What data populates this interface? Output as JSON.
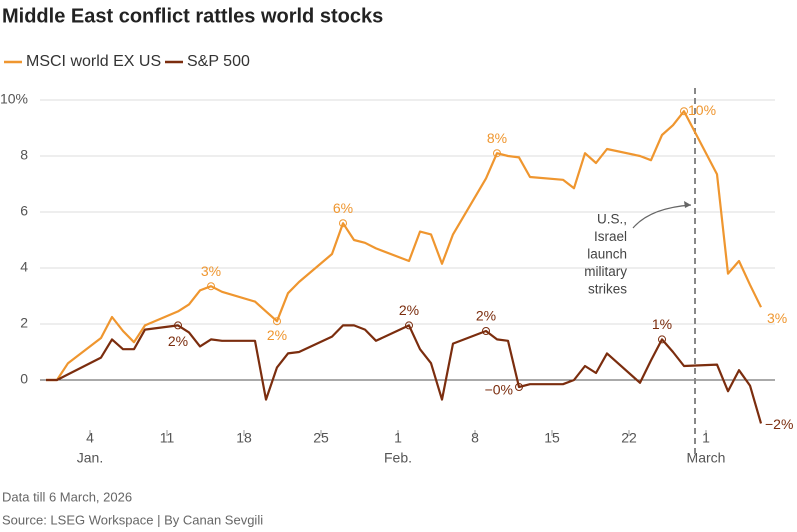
{
  "chart_data": {
    "type": "line",
    "title": "Middle East conflict rattles world stocks",
    "x": [
      "2025-12-31",
      "2026-01-01",
      "2026-01-02",
      "2026-01-05",
      "2026-01-06",
      "2026-01-07",
      "2026-01-08",
      "2026-01-09",
      "2026-01-12",
      "2026-01-13",
      "2026-01-14",
      "2026-01-15",
      "2026-01-16",
      "2026-01-19",
      "2026-01-20",
      "2026-01-21",
      "2026-01-22",
      "2026-01-23",
      "2026-01-26",
      "2026-01-27",
      "2026-01-28",
      "2026-01-29",
      "2026-01-30",
      "2026-02-02",
      "2026-02-03",
      "2026-02-04",
      "2026-02-05",
      "2026-02-06",
      "2026-02-09",
      "2026-02-10",
      "2026-02-11",
      "2026-02-12",
      "2026-02-13",
      "2026-02-16",
      "2026-02-17",
      "2026-02-18",
      "2026-02-19",
      "2026-02-20",
      "2026-02-23",
      "2026-02-24",
      "2026-02-25",
      "2026-02-26",
      "2026-02-27",
      "2026-03-02",
      "2026-03-03",
      "2026-03-04",
      "2026-03-05",
      "2026-03-06"
    ],
    "series": [
      {
        "name": "MSCI world EX US",
        "color": "#ef962f",
        "values": [
          0,
          0,
          0.6,
          1.5,
          2.25,
          1.75,
          1.35,
          1.95,
          2.45,
          2.7,
          3.2,
          3.35,
          3.15,
          2.8,
          2.45,
          2.1,
          3.1,
          3.5,
          4.5,
          5.6,
          5.0,
          4.9,
          4.7,
          4.25,
          5.3,
          5.2,
          4.15,
          5.2,
          7.2,
          8.1,
          8.0,
          7.95,
          7.25,
          7.15,
          6.85,
          8.1,
          7.75,
          8.25,
          8.0,
          7.85,
          8.75,
          9.1,
          9.6,
          7.35,
          3.8,
          4.25,
          3.4,
          2.6
        ],
        "value_labels": [
          null,
          null,
          null,
          null,
          null,
          null,
          null,
          null,
          null,
          null,
          null,
          "3%",
          null,
          null,
          null,
          "2%",
          null,
          null,
          null,
          "6%",
          null,
          null,
          null,
          null,
          null,
          null,
          null,
          null,
          null,
          "8%",
          null,
          null,
          null,
          null,
          null,
          null,
          null,
          null,
          null,
          null,
          null,
          null,
          "10%",
          null,
          null,
          null,
          null,
          "3%"
        ]
      },
      {
        "name": "S&P 500",
        "color": "#7b2d0e",
        "values": [
          0,
          0,
          0.2,
          0.8,
          1.45,
          1.1,
          1.1,
          1.8,
          1.95,
          1.7,
          1.2,
          1.45,
          1.4,
          1.4,
          -0.7,
          0.45,
          0.95,
          1.0,
          1.55,
          1.95,
          1.95,
          1.8,
          1.4,
          1.95,
          1.1,
          0.6,
          -0.7,
          1.3,
          1.75,
          1.45,
          1.4,
          -0.25,
          -0.15,
          -0.15,
          0,
          0.5,
          0.25,
          0.95,
          -0.1,
          0.7,
          1.45,
          1.0,
          0.5,
          0.55,
          -0.4,
          0.35,
          -0.2,
          -1.55
        ],
        "value_labels": [
          null,
          null,
          null,
          null,
          null,
          null,
          null,
          null,
          "2%",
          null,
          null,
          null,
          null,
          null,
          null,
          null,
          null,
          null,
          null,
          null,
          null,
          null,
          null,
          "2%",
          null,
          null,
          null,
          null,
          "2%",
          null,
          null,
          "−0%",
          null,
          null,
          null,
          null,
          null,
          null,
          null,
          null,
          "1%",
          null,
          null,
          null,
          null,
          null,
          null,
          "−2%"
        ]
      }
    ],
    "xlim": [
      "2025-12-30",
      "2026-03-08"
    ],
    "xticks": [
      {
        "value": "2026-01-04",
        "label": "4"
      },
      {
        "value": "2026-01-11",
        "label": "11"
      },
      {
        "value": "2026-01-18",
        "label": "18"
      },
      {
        "value": "2026-01-25",
        "label": "25"
      },
      {
        "value": "2026-02-01",
        "label": "1"
      },
      {
        "value": "2026-02-08",
        "label": "8"
      },
      {
        "value": "2026-02-15",
        "label": "15"
      },
      {
        "value": "2026-02-22",
        "label": "22"
      },
      {
        "value": "2026-03-01",
        "label": "1"
      }
    ],
    "xmonths": [
      {
        "value": "2026-01-04",
        "label": "Jan."
      },
      {
        "value": "2026-02-01",
        "label": "Feb."
      },
      {
        "value": "2026-03-01",
        "label": "March"
      }
    ],
    "ylim": [
      -2,
      10.3
    ],
    "yticks": [
      0,
      2,
      4,
      6,
      8,
      {
        "value": 10,
        "label": "10%"
      }
    ],
    "grid": true,
    "legend": "top-left",
    "event": {
      "x": "2026-02-28",
      "label": [
        "U.S.,",
        "Israel",
        "launch",
        "military",
        "strikes"
      ]
    },
    "notes": [
      "Data till 6 March, 2026",
      "Source: LSEG Workspace | By Canan Sevgili"
    ]
  }
}
